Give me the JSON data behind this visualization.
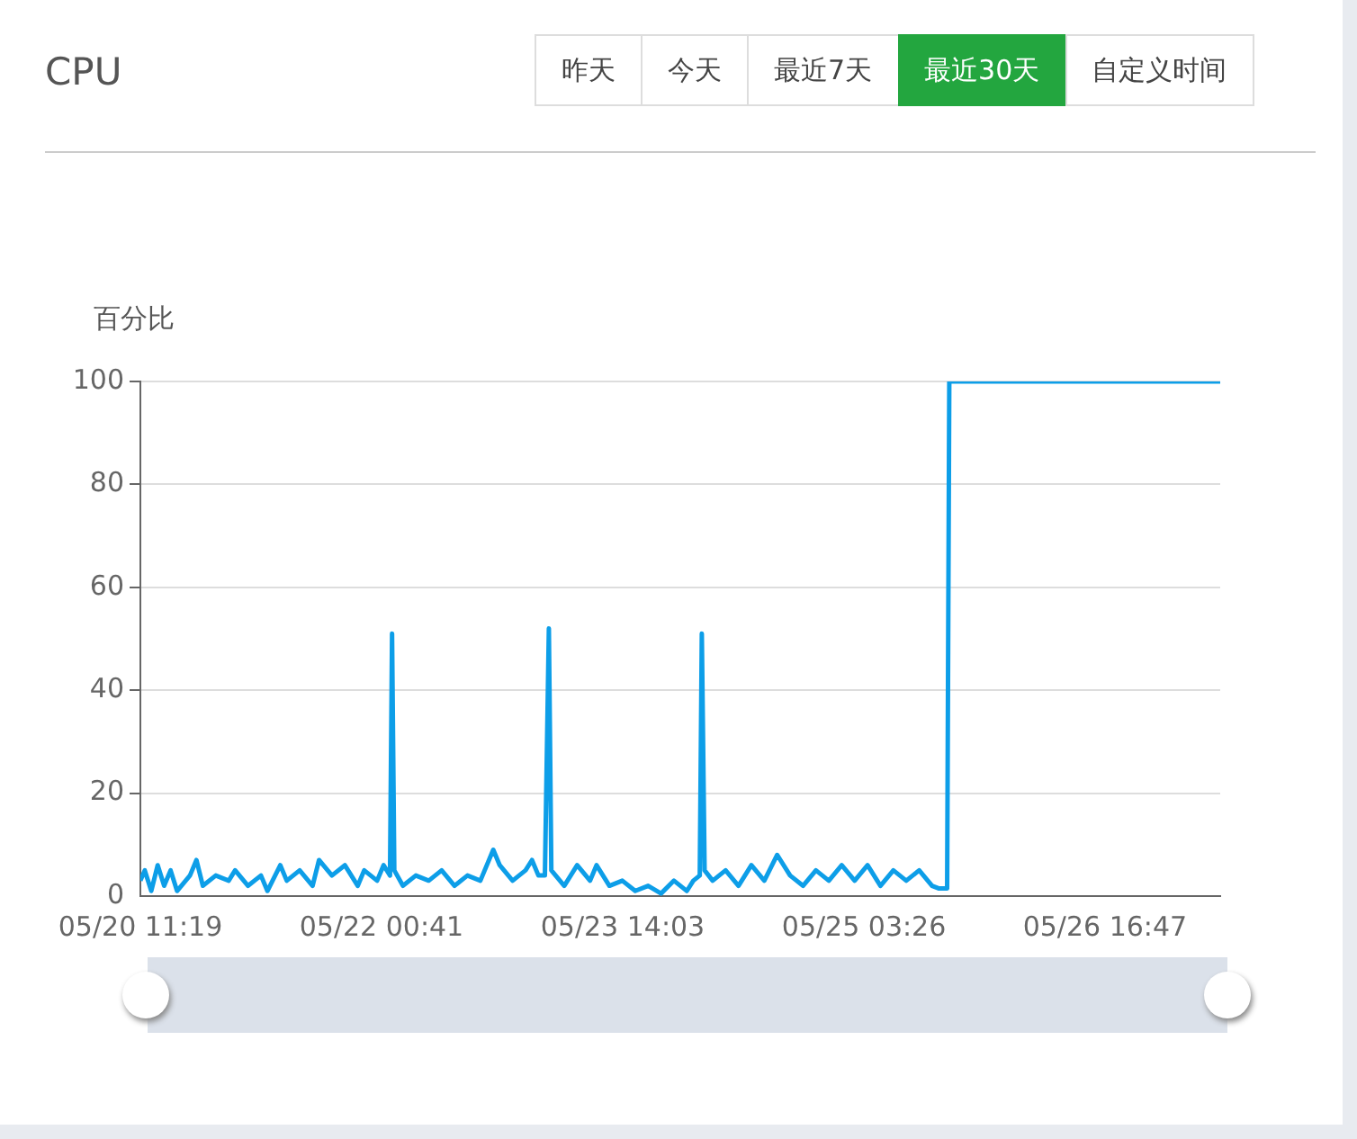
{
  "chart_data": {
    "type": "line",
    "title": "CPU",
    "ylabel": "百分比",
    "annotations": [
      "昨天",
      "今天",
      "最近7天",
      "最近30天",
      "自定义时间"
    ],
    "xlim": [
      "--05-20T11:19",
      "--05-27T10:39"
    ],
    "xticks": [
      {
        "value": "--05-20T11:19",
        "label": "05/20 11:19"
      },
      {
        "value": "--05-22T00:41",
        "label": "05/22 00:41"
      },
      {
        "value": "--05-23T14:03",
        "label": "05/23 14:03"
      },
      {
        "value": "--05-25T03:26",
        "label": "05/25 03:26"
      },
      {
        "value": "--05-26T16:47",
        "label": "05/26 16:47"
      }
    ],
    "ylim": [
      0,
      100
    ],
    "yticks": [
      0,
      20,
      40,
      60,
      80,
      100
    ],
    "grid": "y",
    "legend": false,
    "marker": "none",
    "line_style": "solid",
    "series": [
      {
        "color": "#0d9ee8",
        "x": [
          "--05-20T11:19",
          "--05-20T12:00",
          "--05-20T13:00",
          "--05-20T14:00",
          "--05-20T15:00",
          "--05-20T16:00",
          "--05-20T17:00",
          "--05-20T19:00",
          "--05-20T20:00",
          "--05-20T21:00",
          "--05-20T23:00",
          "--05-21T01:00",
          "--05-21T02:00",
          "--05-21T04:00",
          "--05-21T06:00",
          "--05-21T07:00",
          "--05-21T09:00",
          "--05-21T10:00",
          "--05-21T12:00",
          "--05-21T14:00",
          "--05-21T15:00",
          "--05-21T17:00",
          "--05-21T19:00",
          "--05-21T21:00",
          "--05-21T22:00",
          "--05-22T00:00",
          "--05-22T01:00",
          "--05-22T02:00",
          "--05-22T02:19",
          "--05-22T02:40",
          "--05-22T04:00",
          "--05-22T06:00",
          "--05-22T08:00",
          "--05-22T10:00",
          "--05-22T12:00",
          "--05-22T14:00",
          "--05-22T16:00",
          "--05-22T18:00",
          "--05-22T19:00",
          "--05-22T21:00",
          "--05-22T23:00",
          "--05-23T00:00",
          "--05-23T01:00",
          "--05-23T02:00",
          "--05-23T02:37",
          "--05-23T03:00",
          "--05-23T05:00",
          "--05-23T07:00",
          "--05-23T09:00",
          "--05-23T10:00",
          "--05-23T12:00",
          "--05-23T14:00",
          "--05-23T16:00",
          "--05-23T18:00",
          "--05-23T20:00",
          "--05-23T22:00",
          "--05-24T00:00",
          "--05-24T01:00",
          "--05-24T02:00",
          "--05-24T02:19",
          "--05-24T02:45",
          "--05-24T04:00",
          "--05-24T06:00",
          "--05-24T08:00",
          "--05-24T10:00",
          "--05-24T12:00",
          "--05-24T14:00",
          "--05-24T16:00",
          "--05-24T18:00",
          "--05-24T20:00",
          "--05-24T22:00",
          "--05-25T00:00",
          "--05-25T02:00",
          "--05-25T04:00",
          "--05-25T06:00",
          "--05-25T08:00",
          "--05-25T10:00",
          "--05-25T12:00",
          "--05-25T14:00",
          "--05-25T15:00",
          "--05-25T16:20",
          "--05-25T16:40",
          "--05-27T10:39"
        ],
        "values": [
          3,
          5,
          1,
          6,
          2,
          5,
          1,
          4,
          7,
          2,
          4,
          3,
          5,
          2,
          4,
          1,
          6,
          3,
          5,
          2,
          7,
          4,
          6,
          2,
          5,
          3,
          6,
          4,
          51,
          5,
          2,
          4,
          3,
          5,
          2,
          4,
          3,
          9,
          6,
          3,
          5,
          7,
          4,
          4,
          52,
          5,
          2,
          6,
          3,
          6,
          2,
          3,
          1,
          2,
          0.5,
          3,
          1,
          3,
          4,
          51,
          5,
          3,
          5,
          2,
          6,
          3,
          8,
          4,
          2,
          5,
          3,
          6,
          3,
          6,
          2,
          5,
          3,
          5,
          2,
          1.5,
          1.5,
          100,
          100
        ]
      }
    ]
  }
}
